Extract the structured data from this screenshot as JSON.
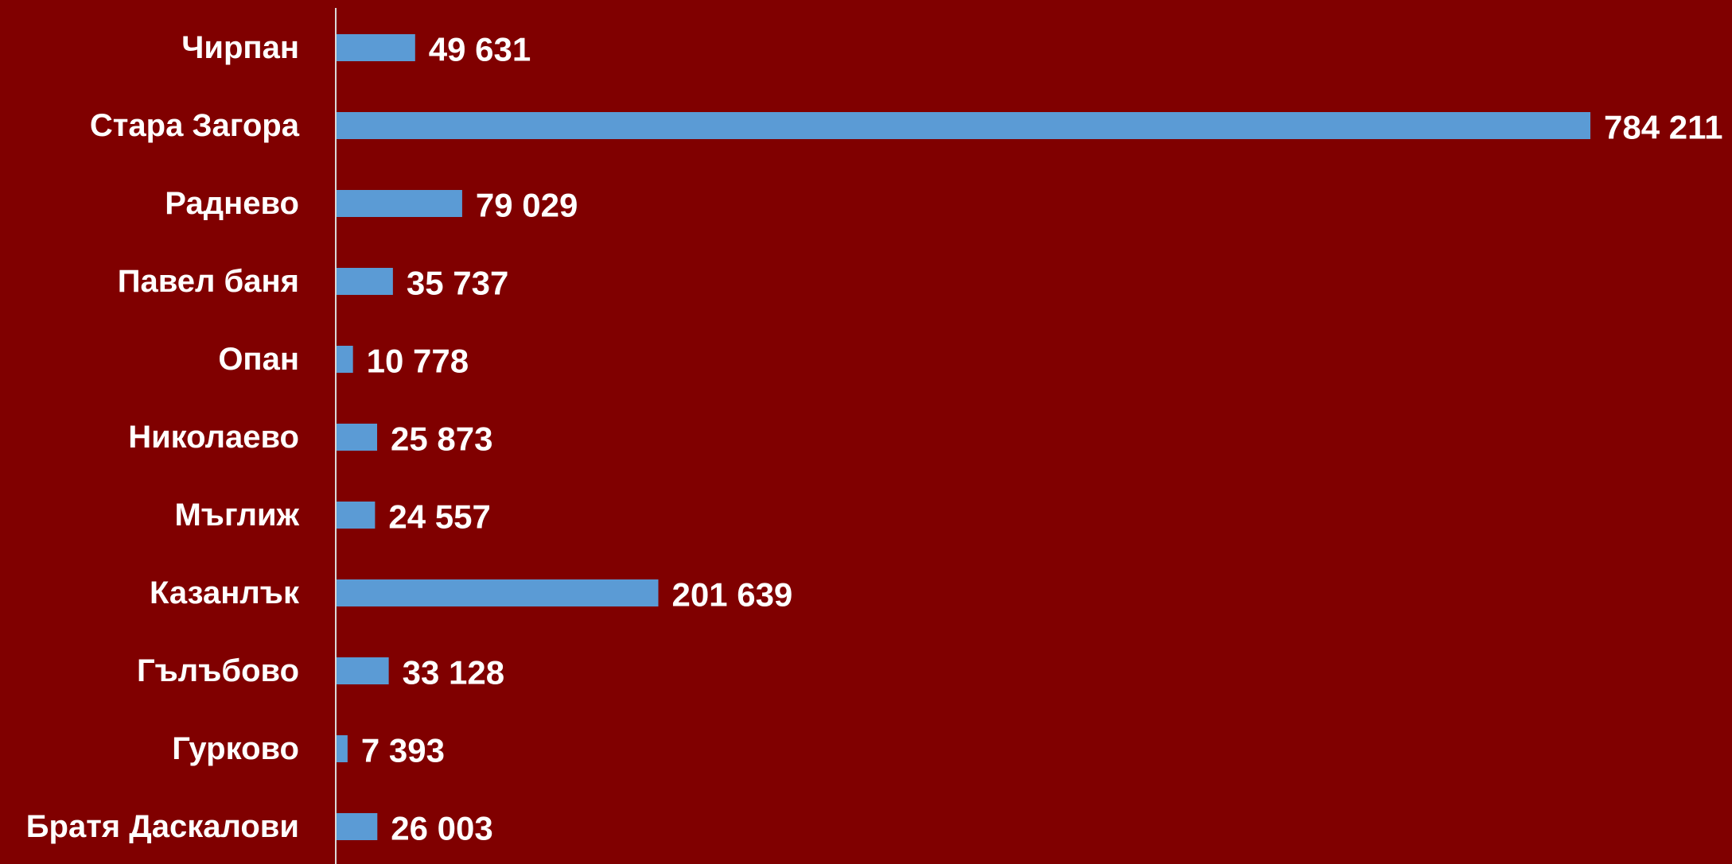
{
  "chart_data": {
    "type": "bar",
    "orientation": "horizontal",
    "categories": [
      "Чирпан",
      "Стара Загора",
      "Раднево",
      "Павел баня",
      "Опан",
      "Николаево",
      "Мъглиж",
      "Казанлък",
      "Гълъбово",
      "Гурково",
      "Братя Даскалови"
    ],
    "values": [
      49631,
      784211,
      79029,
      35737,
      10778,
      25873,
      24557,
      201639,
      33128,
      7393,
      26003
    ],
    "value_labels": [
      "49 631",
      "784 211",
      "79 029",
      "35 737",
      "10 778",
      "25 873",
      "24 557",
      "201 639",
      "33 128",
      "7 393",
      "26 003"
    ],
    "xlim": [
      0,
      784211
    ],
    "grid": false,
    "legend": "none",
    "colors": {
      "background": "#800000",
      "bar": "#5b9bd5",
      "axis": "#d9d9d9",
      "text": "#ffffff"
    }
  }
}
